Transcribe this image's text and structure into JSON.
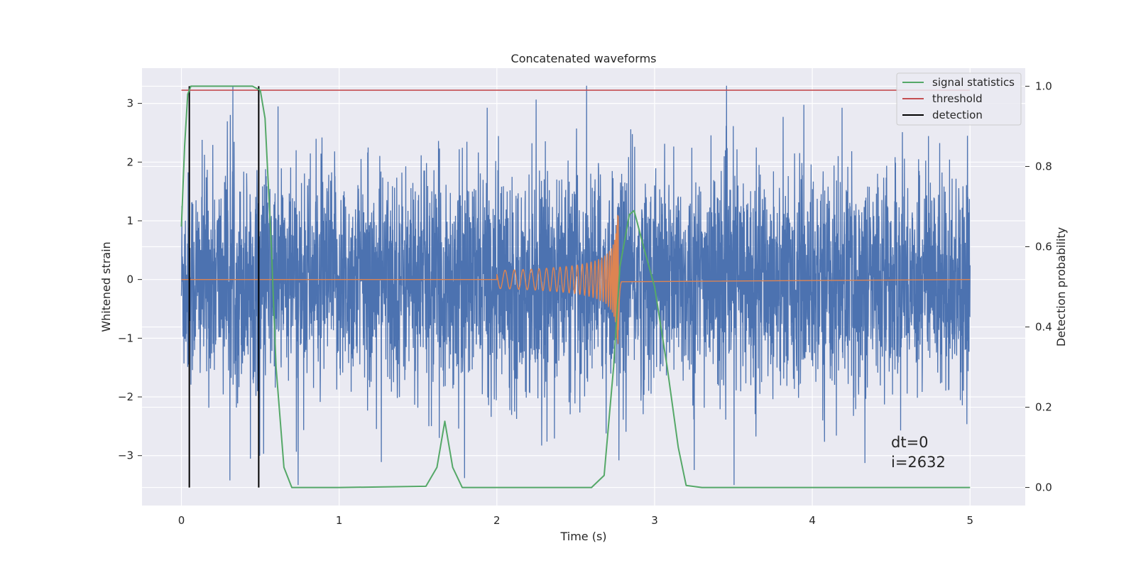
{
  "chart_data": {
    "type": "line",
    "title": "Concatenated waveforms",
    "xlabel": "Time (s)",
    "ylabel_left": "Whitened strain",
    "ylabel_right": "Detection probability",
    "xlim": [
      -0.25,
      5.35
    ],
    "ylim_left": [
      -3.85,
      3.6
    ],
    "ylim_right": [
      -0.045,
      1.045
    ],
    "xticks": [
      0,
      1,
      2,
      3,
      4,
      5
    ],
    "yticks_left": [
      -3,
      -2,
      -1,
      0,
      1,
      2,
      3
    ],
    "yticks_right": [
      0.0,
      0.2,
      0.4,
      0.6,
      0.8,
      1.0
    ],
    "grid": true,
    "legend_position": "top-right",
    "series": [
      {
        "name": "signal statistics",
        "axis": "right",
        "color": "#55a868",
        "x": [
          0.0,
          0.02,
          0.04,
          0.06,
          0.1,
          0.3,
          0.45,
          0.5,
          0.53,
          0.57,
          0.6,
          0.65,
          0.7,
          0.75,
          1.0,
          1.4,
          1.55,
          1.62,
          1.67,
          1.72,
          1.78,
          2.0,
          2.6,
          2.68,
          2.74,
          2.78,
          2.84,
          2.87,
          2.93,
          3.0,
          3.08,
          3.15,
          3.2,
          3.3,
          5.0
        ],
        "y": [
          0.65,
          0.85,
          0.98,
          1.0,
          1.0,
          1.0,
          1.0,
          0.99,
          0.92,
          0.6,
          0.3,
          0.05,
          0.0,
          0.0,
          0.0,
          0.002,
          0.003,
          0.05,
          0.165,
          0.05,
          0.0,
          0.0,
          0.0,
          0.03,
          0.3,
          0.55,
          0.68,
          0.69,
          0.6,
          0.5,
          0.3,
          0.1,
          0.005,
          0.0,
          0.0
        ]
      },
      {
        "name": "threshold",
        "axis": "right",
        "color": "#c44e52",
        "x": [
          0.0,
          5.0
        ],
        "y": [
          0.99,
          0.99
        ]
      },
      {
        "name": "detection",
        "axis": "right",
        "color": "#000000",
        "x": [
          0.05,
          0.49
        ],
        "y_range": [
          0.0,
          1.0
        ]
      },
      {
        "name": "",
        "axis": "left",
        "color": "#4c72b0",
        "x_range": [
          0,
          5
        ],
        "y_range": [
          -3.5,
          3.3
        ]
      },
      {
        "name": "",
        "axis": "left",
        "color": "#dd8452",
        "x_range": [
          2.0,
          2.79
        ],
        "peak_time": 2.77,
        "peak_amplitude": 1.1
      }
    ],
    "annotations": [
      "dt=0",
      "i=2632"
    ]
  }
}
